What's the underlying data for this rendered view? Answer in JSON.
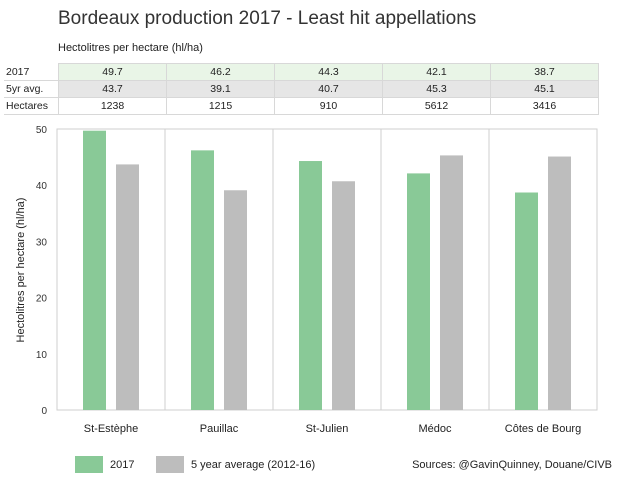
{
  "title": "Bordeaux production 2017 - Least hit appellations",
  "table": {
    "caption": "Hectolitres per hectare (hl/ha)",
    "rows": [
      {
        "label": "2017",
        "cells": [
          "49.7",
          "46.2",
          "44.3",
          "42.1",
          "38.7"
        ]
      },
      {
        "label": "5yr avg.",
        "cells": [
          "43.7",
          "39.1",
          "40.7",
          "45.3",
          "45.1"
        ]
      },
      {
        "label": "Hectares",
        "cells": [
          "1238",
          "1215",
          "910",
          "5612",
          "3416"
        ]
      }
    ]
  },
  "legend": {
    "item1": "2017",
    "item2": "5 year average (2012-16)"
  },
  "source": "Sources: @GavinQuinney, Douane/CIVB",
  "colors": {
    "series1": "#89c997",
    "series2": "#bdbdbd",
    "grid": "#cfcfcf"
  },
  "chart_data": {
    "type": "bar",
    "categories": [
      "St-Estèphe",
      "Pauillac",
      "St-Julien",
      "Médoc",
      "Côtes de Bourg"
    ],
    "series": [
      {
        "name": "2017",
        "values": [
          49.7,
          46.2,
          44.3,
          42.1,
          38.7
        ]
      },
      {
        "name": "5 year average (2012-16)",
        "values": [
          43.7,
          39.1,
          40.7,
          45.3,
          45.1
        ]
      }
    ],
    "ylabel": "Hectolitres per hectare (hl/ha)",
    "yticks": [
      0,
      10,
      20,
      30,
      40,
      50
    ],
    "ylim": [
      0,
      50
    ],
    "grid": true,
    "legend_position": "bottom-left"
  }
}
